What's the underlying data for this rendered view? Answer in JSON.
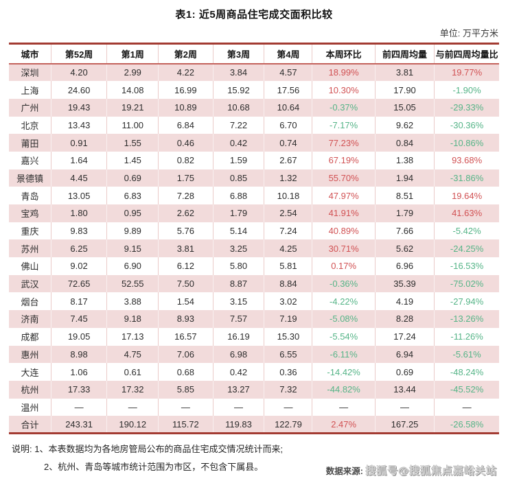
{
  "page": {
    "title": "表1: 近5周商品住宅成交面积比较",
    "unit_label": "单位: 万平方米"
  },
  "chart_data": {
    "type": "table",
    "title": "表1: 近5周商品住宅成交面积比较",
    "unit": "万平方米",
    "columns": [
      "城市",
      "第52周",
      "第1周",
      "第2周",
      "第3周",
      "第4周",
      "本周环比",
      "前四周均量",
      "与前四周均量比"
    ],
    "empty_marker": "—",
    "rows": [
      [
        "深圳",
        "4.20",
        "2.99",
        "4.22",
        "3.84",
        "4.57",
        "18.99%",
        "3.81",
        "19.77%"
      ],
      [
        "上海",
        "24.60",
        "14.08",
        "16.99",
        "15.92",
        "17.56",
        "10.30%",
        "17.90",
        "-1.90%"
      ],
      [
        "广州",
        "19.43",
        "19.21",
        "10.89",
        "10.68",
        "10.64",
        "-0.37%",
        "15.05",
        "-29.33%"
      ],
      [
        "北京",
        "13.43",
        "11.00",
        "6.84",
        "7.22",
        "6.70",
        "-7.17%",
        "9.62",
        "-30.36%"
      ],
      [
        "莆田",
        "0.91",
        "1.55",
        "0.46",
        "0.42",
        "0.74",
        "77.23%",
        "0.84",
        "-10.86%"
      ],
      [
        "嘉兴",
        "1.64",
        "1.45",
        "0.82",
        "1.59",
        "2.67",
        "67.19%",
        "1.38",
        "93.68%"
      ],
      [
        "景德镇",
        "4.45",
        "0.69",
        "1.75",
        "0.85",
        "1.32",
        "55.70%",
        "1.94",
        "-31.86%"
      ],
      [
        "青岛",
        "13.05",
        "6.83",
        "7.28",
        "6.88",
        "10.18",
        "47.97%",
        "8.51",
        "19.64%"
      ],
      [
        "宝鸡",
        "1.80",
        "0.95",
        "2.62",
        "1.79",
        "2.54",
        "41.91%",
        "1.79",
        "41.63%"
      ],
      [
        "重庆",
        "9.83",
        "9.89",
        "5.76",
        "5.14",
        "7.24",
        "40.89%",
        "7.66",
        "-5.42%"
      ],
      [
        "苏州",
        "6.25",
        "9.15",
        "3.81",
        "3.25",
        "4.25",
        "30.71%",
        "5.62",
        "-24.25%"
      ],
      [
        "佛山",
        "9.02",
        "6.90",
        "6.12",
        "5.80",
        "5.81",
        "0.17%",
        "6.96",
        "-16.53%"
      ],
      [
        "武汉",
        "72.65",
        "52.55",
        "7.50",
        "8.87",
        "8.84",
        "-0.36%",
        "35.39",
        "-75.02%"
      ],
      [
        "烟台",
        "8.17",
        "3.88",
        "1.54",
        "3.15",
        "3.02",
        "-4.22%",
        "4.19",
        "-27.94%"
      ],
      [
        "济南",
        "7.45",
        "9.18",
        "8.93",
        "7.57",
        "7.19",
        "-5.08%",
        "8.28",
        "-13.26%"
      ],
      [
        "成都",
        "19.05",
        "17.13",
        "16.57",
        "16.19",
        "15.30",
        "-5.54%",
        "17.24",
        "-11.26%"
      ],
      [
        "惠州",
        "8.98",
        "4.75",
        "7.06",
        "6.98",
        "6.55",
        "-6.11%",
        "6.94",
        "-5.61%"
      ],
      [
        "大连",
        "1.06",
        "0.61",
        "0.68",
        "0.42",
        "0.36",
        "-14.42%",
        "0.69",
        "-48.24%"
      ],
      [
        "杭州",
        "17.33",
        "17.32",
        "5.85",
        "13.27",
        "7.32",
        "-44.82%",
        "13.44",
        "-45.52%"
      ],
      [
        "温州",
        "—",
        "—",
        "—",
        "—",
        "—",
        "—",
        "—",
        "—"
      ],
      [
        "合计",
        "243.31",
        "190.12",
        "115.72",
        "119.83",
        "122.79",
        "2.47%",
        "167.25",
        "-26.58%"
      ]
    ],
    "total_row_label": "合计",
    "percent_column_indexes": [
      6,
      8
    ],
    "legend_position": "none",
    "grid": "row-stripes"
  },
  "notes": {
    "label": "说明:",
    "line1": "1、本表数据均为各地房管局公布的商品住宅成交情况统计而来;",
    "line2": "2、杭州、青岛等城市统计范围为市区，不包含下属县。"
  },
  "source": {
    "label": "数据来源:",
    "watermark": "搜狐号@搜狐焦点嘉峪关站"
  },
  "colors": {
    "positive": "#d15153",
    "negative": "#55b487",
    "row_stripe_pink": "#f2dbdb",
    "border_dark_red": "#a33b32",
    "header_underline_red": "#c4625c",
    "cell_separator_pink": "#eacac8"
  }
}
